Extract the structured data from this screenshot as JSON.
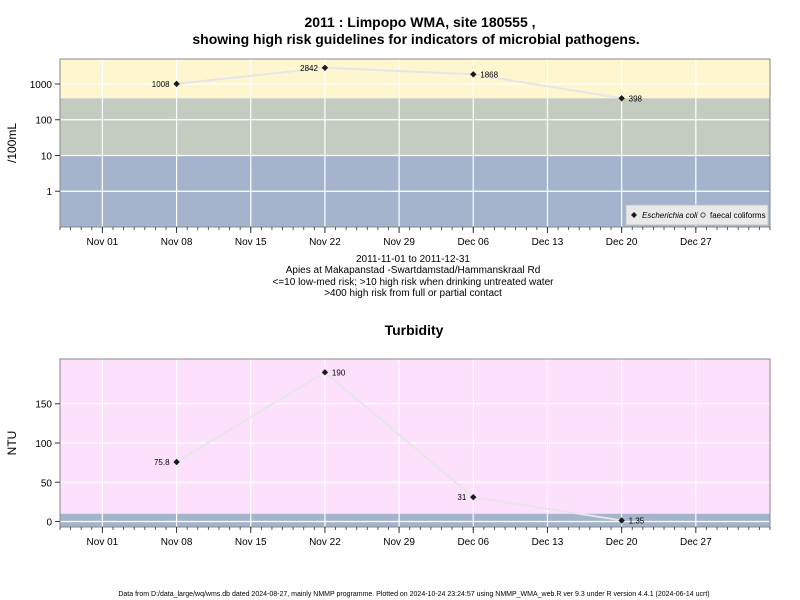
{
  "chart_data": [
    {
      "type": "line",
      "title_line1": "2011 : Limpopo WMA, site 180555 ,",
      "title_line2": "showing high risk guidelines for indicators of microbial pathogens.",
      "ylabel": "/100mL",
      "y_scale": "log",
      "ylim": [
        0.1,
        5000
      ],
      "yticks": [
        1,
        10,
        100,
        1000
      ],
      "ytick_labels": [
        "1",
        "10",
        "100",
        "1000"
      ],
      "xlim": [
        "2011-10-28",
        "2012-01-03"
      ],
      "xticks": [
        "2011-11-01",
        "2011-11-08",
        "2011-11-15",
        "2011-11-22",
        "2011-11-29",
        "2011-12-06",
        "2011-12-13",
        "2011-12-20",
        "2011-12-27"
      ],
      "xtick_labels": [
        "Nov 01",
        "Nov 08",
        "Nov 15",
        "Nov 22",
        "Nov 29",
        "Dec 06",
        "Dec 13",
        "Dec 20",
        "Dec 27"
      ],
      "bands": [
        {
          "from": 0.1,
          "to": 10,
          "color": "#a4b4cc"
        },
        {
          "from": 10,
          "to": 400,
          "color": "#c4cbc1"
        },
        {
          "from": 400,
          "to": 5000,
          "color": "#fdf6cf"
        }
      ],
      "series": [
        {
          "name": "Escherichia coli",
          "marker": "filled-diamond",
          "x": [
            "2011-11-08",
            "2011-11-22",
            "2011-12-06",
            "2011-12-20"
          ],
          "y": [
            1008,
            2842,
            1868,
            398
          ],
          "labels": [
            "1008",
            "2842",
            "1868",
            "398"
          ]
        },
        {
          "name": "faecal coliforms",
          "marker": "open-circle",
          "x": [],
          "y": []
        }
      ],
      "legend_position": "bottom-right",
      "grid": true,
      "notes": [
        "2011-11-01 to 2011-12-31",
        "Apies at Makapanstad -Swartdamstad/Hammanskraal Rd",
        "<=10 low-med risk; >10 high risk when drinking untreated water",
        ">400 high risk from full or partial contact"
      ]
    },
    {
      "type": "line",
      "title": "Turbidity",
      "ylabel": "NTU",
      "ylim": [
        -7,
        207
      ],
      "yticks": [
        0,
        50,
        100,
        150
      ],
      "ytick_labels": [
        "0",
        "50",
        "100",
        "150"
      ],
      "xlim": [
        "2011-10-28",
        "2012-01-03"
      ],
      "xticks": [
        "2011-11-01",
        "2011-11-08",
        "2011-11-15",
        "2011-11-22",
        "2011-11-29",
        "2011-12-06",
        "2011-12-13",
        "2011-12-20",
        "2011-12-27"
      ],
      "xtick_labels": [
        "Nov 01",
        "Nov 08",
        "Nov 15",
        "Nov 22",
        "Nov 29",
        "Dec 06",
        "Dec 13",
        "Dec 20",
        "Dec 27"
      ],
      "bands": [
        {
          "from": -7,
          "to": 10,
          "color": "#a4b4cc"
        },
        {
          "from": 10,
          "to": 207,
          "color": "#fde0fb"
        }
      ],
      "series": [
        {
          "name": "",
          "marker": "filled-diamond",
          "x": [
            "2011-11-08",
            "2011-11-22",
            "2011-12-06",
            "2011-12-20"
          ],
          "y": [
            75.8,
            190,
            31,
            1.35
          ],
          "labels": [
            "75.8",
            "190",
            "31",
            "1.35"
          ]
        }
      ],
      "grid": true
    }
  ],
  "footer": "Data from D:/data_large/wq/wms.db dated 2024-08-27, mainly NMMP programme. Plotted on 2024-10-24 23:24:57 using NMMP_WMA_web.R ver 9.3 under R version 4.4.1 (2024-06-14 ucrt)",
  "colors": {
    "line": "#e6e6e6",
    "grid": "#ffffff",
    "marker": "#1a1a1a",
    "frame": "#888888"
  }
}
